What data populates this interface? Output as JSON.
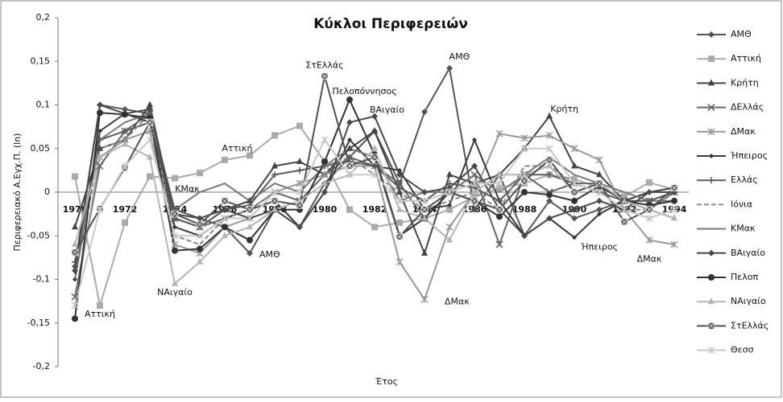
{
  "chart_data": {
    "type": "line",
    "title": "Κύκλοι Περιφερειών",
    "ylabel": "Περιφερειακό Α.Εγχ.Π. (ln)",
    "xlabel": "Έτος",
    "categories": [
      "1970",
      null,
      "1972",
      null,
      "1974",
      null,
      "1976",
      null,
      "1978",
      null,
      "1980",
      null,
      "1982",
      null,
      "1984",
      null,
      "1986",
      null,
      "1988",
      null,
      "1990",
      null,
      "1992",
      null,
      "1994"
    ],
    "ylim": [
      -0.2,
      0.2
    ],
    "yticks": [
      {
        "value": -0.2,
        "label": "-0,2"
      },
      {
        "value": -0.15,
        "label": "-0,15"
      },
      {
        "value": -0.1,
        "label": "-0,1"
      },
      {
        "value": -0.05,
        "label": "-0,05"
      },
      0,
      {
        "value": 0.05,
        "label": "0,05"
      },
      {
        "value": 0.1,
        "label": "0,1"
      },
      {
        "value": 0.15,
        "label": "0,15"
      },
      {
        "value": 0.2,
        "label": "0,2"
      }
    ],
    "legend": "right",
    "series": [
      {
        "name": "ΑΜΘ",
        "color": "#555555",
        "marker": "diamond",
        "values": [
          -0.085,
          0.1,
          0.095,
          0.09,
          -0.02,
          -0.03,
          -0.04,
          -0.07,
          -0.02,
          -0.04,
          0.01,
          0.04,
          0.07,
          0.01,
          0.092,
          0.142,
          -0.02,
          0.02,
          -0.05,
          -0.01,
          -0.03,
          -0.02,
          -0.01,
          -0.02,
          0.0
        ]
      },
      {
        "name": "Αττική",
        "color": "#aaaaaa",
        "marker": "square",
        "values": [
          0.018,
          -0.13,
          -0.035,
          0.018,
          0.016,
          0.022,
          0.037,
          0.042,
          0.065,
          0.076,
          0.035,
          -0.02,
          -0.04,
          -0.035,
          -0.03,
          -0.02,
          -0.005,
          0.005,
          0.01,
          0.02,
          0.015,
          0.005,
          -0.005,
          0.011,
          0.003
        ]
      },
      {
        "name": "Κρήτη",
        "color": "#444444",
        "marker": "triangle",
        "values": [
          -0.04,
          0.05,
          0.06,
          0.1,
          -0.03,
          -0.04,
          -0.02,
          -0.01,
          0.03,
          0.035,
          0.02,
          0.05,
          0.07,
          0.0,
          -0.07,
          0.02,
          0.01,
          0.02,
          0.05,
          0.087,
          0.03,
          0.02,
          -0.01,
          -0.02,
          -0.03
        ]
      },
      {
        "name": "ΔΕλλάς",
        "color": "#666666",
        "marker": "x",
        "values": [
          -0.12,
          0.03,
          0.07,
          0.09,
          -0.03,
          -0.04,
          -0.03,
          -0.02,
          0.0,
          -0.01,
          0.02,
          0.04,
          0.03,
          0.01,
          -0.03,
          0.0,
          0.02,
          -0.06,
          0.02,
          0.0,
          0.01,
          0.01,
          -0.01,
          -0.01,
          0.0
        ]
      },
      {
        "name": "ΔΜακ",
        "color": "#999999",
        "marker": "star",
        "values": [
          -0.13,
          0.04,
          0.06,
          0.07,
          -0.06,
          -0.07,
          -0.04,
          -0.03,
          0.0,
          0.01,
          0.02,
          0.03,
          0.03,
          -0.08,
          -0.123,
          -0.04,
          0.0,
          0.067,
          0.062,
          0.065,
          0.05,
          0.037,
          -0.02,
          -0.055,
          -0.06
        ]
      },
      {
        "name": "Ήπειρος",
        "color": "#3a3a3a",
        "marker": "smalldiamond",
        "values": [
          -0.1,
          0.07,
          0.09,
          0.08,
          -0.04,
          -0.05,
          -0.03,
          -0.02,
          -0.01,
          -0.04,
          0.0,
          0.06,
          0.03,
          0.025,
          -0.02,
          -0.015,
          0.06,
          -0.01,
          -0.05,
          -0.03,
          -0.052,
          -0.025,
          -0.01,
          0.0,
          0.005
        ]
      },
      {
        "name": "Ελλάς",
        "color": "#5a5a5a",
        "marker": "plus",
        "values": [
          -0.08,
          0.06,
          0.07,
          0.08,
          -0.03,
          -0.04,
          -0.02,
          -0.015,
          0.02,
          0.025,
          0.03,
          0.035,
          0.03,
          0.005,
          -0.01,
          0.01,
          0.005,
          -0.01,
          0.02,
          0.02,
          0.01,
          0.0,
          -0.01,
          -0.01,
          0.0
        ]
      },
      {
        "name": "Ιόνια",
        "color": "#8a8a8a",
        "marker": "none",
        "dash": true,
        "values": [
          -0.1,
          0.05,
          0.06,
          0.09,
          -0.05,
          -0.06,
          -0.03,
          -0.02,
          0.0,
          0.0,
          0.03,
          0.04,
          0.02,
          0.0,
          -0.02,
          -0.01,
          0.0,
          -0.02,
          0.03,
          0.03,
          0.01,
          0.0,
          -0.02,
          -0.02,
          0.0
        ]
      },
      {
        "name": "ΚΜακ",
        "color": "#7a7a7a",
        "marker": "none",
        "values": [
          -0.09,
          0.06,
          0.08,
          0.09,
          -0.02,
          0.0,
          0.01,
          -0.01,
          0.01,
          0.0,
          0.03,
          0.05,
          0.04,
          -0.01,
          0.0,
          0.0,
          0.02,
          0.0,
          0.02,
          0.04,
          0.02,
          0.01,
          0.0,
          -0.01,
          -0.01
        ]
      },
      {
        "name": "ΒΑιγαίο",
        "color": "#4a4a4a",
        "marker": "diamond",
        "values": [
          -0.09,
          0.1,
          0.09,
          0.095,
          -0.025,
          -0.03,
          -0.02,
          -0.03,
          -0.02,
          -0.04,
          0.0,
          0.08,
          0.087,
          0.02,
          0.0,
          0.005,
          0.03,
          -0.02,
          -0.05,
          -0.03,
          -0.02,
          -0.01,
          -0.02,
          0.0,
          0.0
        ]
      },
      {
        "name": "Πελοπ",
        "color": "#333333",
        "marker": "circle",
        "values": [
          -0.145,
          0.091,
          0.089,
          0.085,
          -0.067,
          -0.065,
          -0.04,
          -0.055,
          -0.02,
          -0.02,
          0.035,
          0.106,
          0.043,
          -0.05,
          -0.03,
          0.0,
          -0.01,
          -0.028,
          0.0,
          -0.003,
          -0.01,
          0.007,
          -0.01,
          -0.015,
          -0.01
        ]
      },
      {
        "name": "ΝΑιγαίο",
        "color": "#b5b5b5",
        "marker": "triangle",
        "values": [
          -0.06,
          0.04,
          0.055,
          0.04,
          -0.105,
          -0.08,
          -0.05,
          -0.04,
          -0.02,
          -0.01,
          0.01,
          0.02,
          0.05,
          -0.02,
          -0.03,
          -0.055,
          0.0,
          0.02,
          0.02,
          0.03,
          0.0,
          0.01,
          -0.01,
          -0.02,
          -0.03
        ]
      },
      {
        "name": "ΣτΕλλάς",
        "color": "#505050",
        "marker": "boxx",
        "values": [
          -0.069,
          -0.019,
          0.028,
          0.08,
          -0.025,
          -0.037,
          -0.01,
          -0.02,
          -0.01,
          -0.015,
          0.133,
          0.03,
          0.04,
          -0.051,
          -0.02,
          0.0,
          -0.01,
          -0.02,
          0.013,
          0.037,
          0.0,
          0.01,
          -0.034,
          -0.02,
          0.005
        ]
      },
      {
        "name": "Θεσσ",
        "color": "#c8c8c8",
        "marker": "star",
        "values": [
          -0.13,
          -0.02,
          0.03,
          0.06,
          -0.05,
          -0.05,
          -0.03,
          -0.03,
          0.0,
          0.0,
          0.06,
          0.02,
          0.02,
          -0.01,
          -0.01,
          0.0,
          0.01,
          0.01,
          0.05,
          0.05,
          0.01,
          0.0,
          -0.02,
          -0.03,
          -0.02
        ]
      }
    ],
    "annotations": [
      {
        "text": "Αττική",
        "x": 1,
        "y": -0.14
      },
      {
        "text": "ΝΑιγαίο",
        "x": 4,
        "y": -0.115
      },
      {
        "text": "ΚΜακ",
        "x": 4.5,
        "y": 0.003
      },
      {
        "text": "Αττική",
        "x": 6.5,
        "y": 0.05
      },
      {
        "text": "ΑΜΘ",
        "x": 7.8,
        "y": -0.072
      },
      {
        "text": "ΣτΕλλάς",
        "x": 10,
        "y": 0.145
      },
      {
        "text": "Πελοπόννησος",
        "x": 11.6,
        "y": 0.115
      },
      {
        "text": "ΒΑιγαίο",
        "x": 12.5,
        "y": 0.094
      },
      {
        "text": "ΑΜΘ",
        "x": 15.4,
        "y": 0.155
      },
      {
        "text": "ΔΜακ",
        "x": 15.3,
        "y": -0.126
      },
      {
        "text": "Κρήτη",
        "x": 19.6,
        "y": 0.095
      },
      {
        "text": "Ήπειρος",
        "x": 21,
        "y": -0.063
      },
      {
        "text": "ΔΜακ",
        "x": 23,
        "y": -0.077
      }
    ]
  }
}
